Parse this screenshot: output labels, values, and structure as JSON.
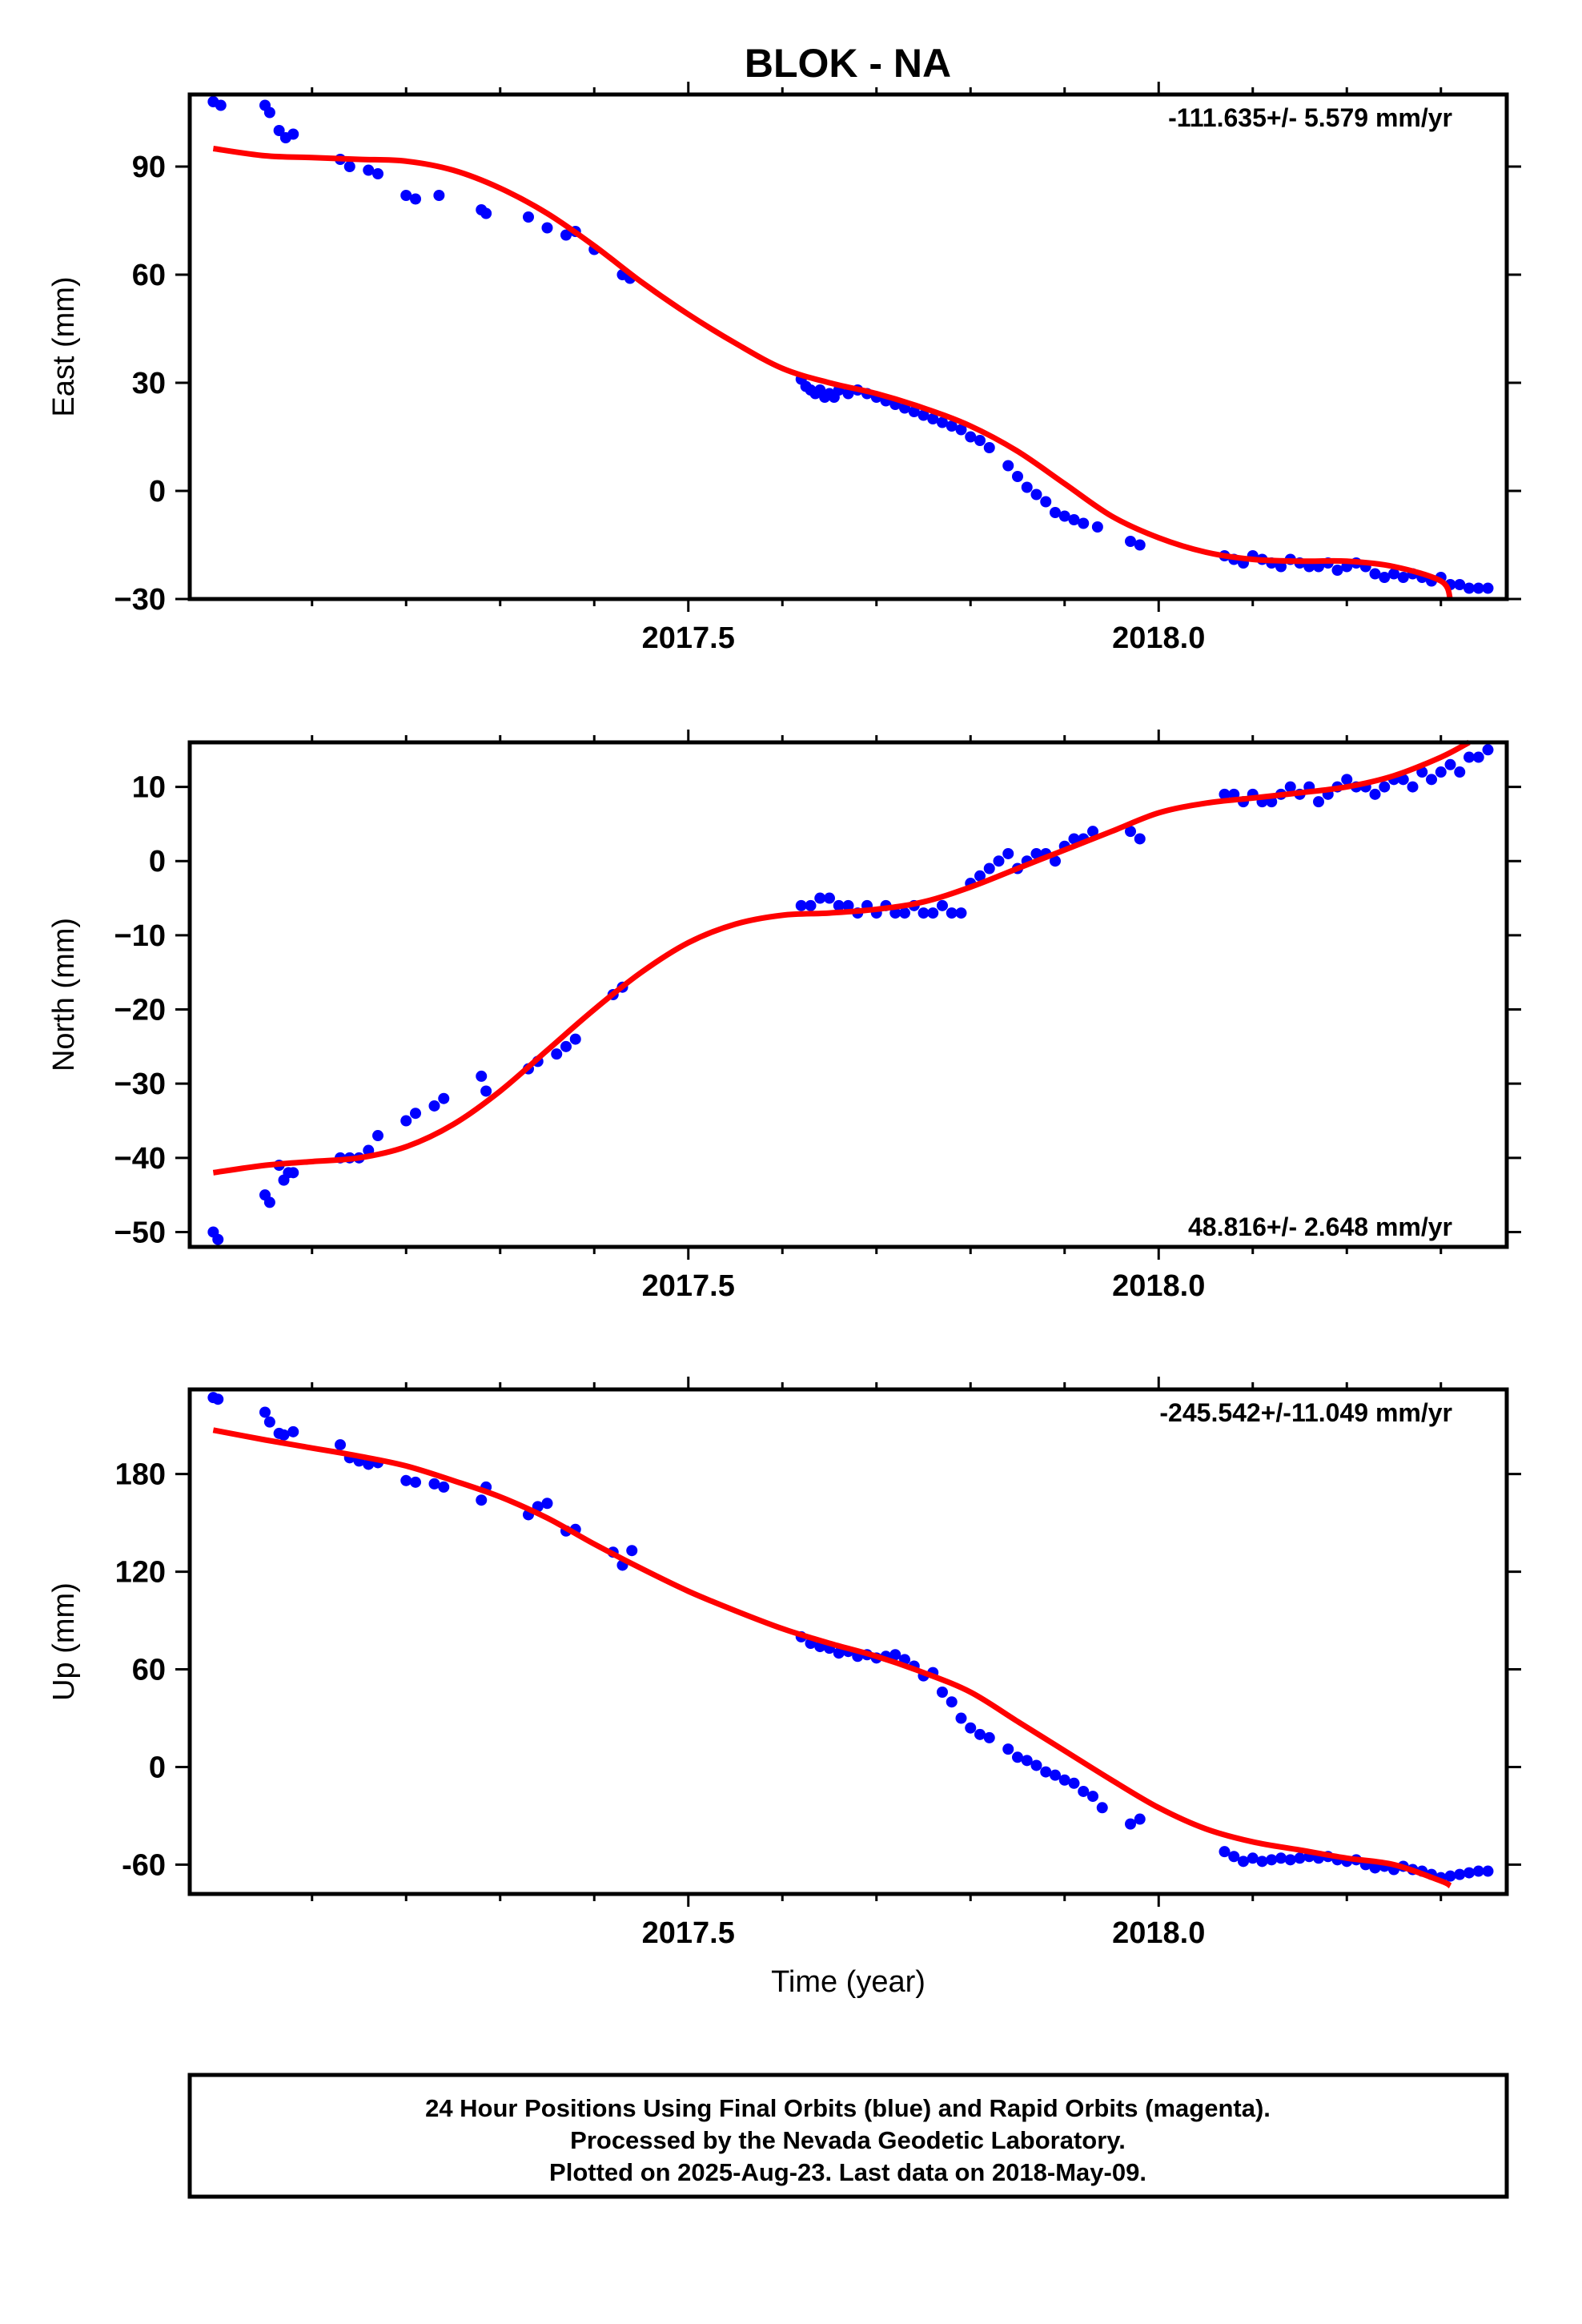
{
  "figure": {
    "title": "BLOK - NA",
    "footer": [
      "24 Hour Positions Using Final Orbits (blue) and Rapid Orbits (magenta).",
      "Processed by the Nevada Geodetic Laboratory.",
      "Plotted on 2025-Aug-23. Last data on 2018-May-09."
    ],
    "colors": {
      "data": "#0000ff",
      "fit": "#ff0000",
      "frame": "#000000"
    }
  },
  "chart_data": [
    {
      "type": "scatter",
      "ylabel": "East (mm)",
      "xlabel": "",
      "rate": "-111.635+/- 5.579 mm/yr",
      "rate_placement": "top-right",
      "xlim": [
        2016.97,
        2018.37
      ],
      "ylim": [
        -30,
        110
      ],
      "xticks": [
        2017.5,
        2018.0
      ],
      "xtick_labels": [
        "2017.5",
        "2018.0"
      ],
      "yticks": [
        -30,
        0,
        30,
        60,
        90
      ],
      "ytick_labels": [
        "−30",
        "0",
        "30",
        "60",
        "90"
      ],
      "series": [
        {
          "kind": "points",
          "x": [
            2016.995,
            2017.003,
            2017.05,
            2017.055,
            2017.065,
            2017.072,
            2017.08,
            2017.13,
            2017.14,
            2017.16,
            2017.17,
            2017.2,
            2017.21,
            2017.235,
            2017.28,
            2017.285,
            2017.33,
            2017.35,
            2017.37,
            2017.38,
            2017.4,
            2017.43,
            2017.438,
            2017.62,
            2017.625,
            2017.63,
            2017.635,
            2017.64,
            2017.645,
            2017.65,
            2017.655,
            2017.66,
            2017.67,
            2017.68,
            2017.69,
            2017.7,
            2017.71,
            2017.72,
            2017.73,
            2017.74,
            2017.75,
            2017.76,
            2017.77,
            2017.78,
            2017.79,
            2017.8,
            2017.81,
            2017.82,
            2017.84,
            2017.85,
            2017.86,
            2017.87,
            2017.88,
            2017.89,
            2017.9,
            2017.91,
            2017.92,
            2017.935,
            2017.97,
            2017.98,
            2018.07,
            2018.08,
            2018.09,
            2018.1,
            2018.11,
            2018.12,
            2018.13,
            2018.14,
            2018.15,
            2018.16,
            2018.17,
            2018.18,
            2018.19,
            2018.2,
            2018.21,
            2018.22,
            2018.23,
            2018.24,
            2018.25,
            2018.26,
            2018.27,
            2018.28,
            2018.29,
            2018.3,
            2018.31,
            2018.32,
            2018.33,
            2018.34,
            2018.35
          ],
          "y": [
            108,
            107,
            107,
            105,
            100,
            98,
            99,
            92,
            90,
            89,
            88,
            82,
            81,
            82,
            78,
            77,
            76,
            73,
            71,
            72,
            67,
            60,
            59,
            31,
            29,
            28,
            27,
            28,
            26,
            27,
            26,
            28,
            27,
            28,
            27,
            26,
            25,
            24,
            23,
            22,
            21,
            20,
            19,
            18,
            17,
            15,
            14,
            12,
            7,
            4,
            1,
            -1,
            -3,
            -6,
            -7,
            -8,
            -9,
            -10,
            -14,
            -15,
            -18,
            -19,
            -20,
            -18,
            -19,
            -20,
            -21,
            -19,
            -20,
            -21,
            -21,
            -20,
            -22,
            -21,
            -20,
            -21,
            -23,
            -24,
            -23,
            -24,
            -23,
            -24,
            -25,
            -24,
            -26,
            -26,
            -27,
            -27,
            -27
          ]
        },
        {
          "kind": "fit",
          "x": [
            2016.995,
            2017.05,
            2017.1,
            2017.15,
            2017.2,
            2017.25,
            2017.3,
            2017.35,
            2017.4,
            2017.45,
            2017.5,
            2017.55,
            2017.6,
            2017.65,
            2017.7,
            2017.75,
            2017.8,
            2017.85,
            2017.9,
            2017.95,
            2018.0,
            2018.05,
            2018.1,
            2018.15,
            2018.2,
            2018.25,
            2018.3,
            2018.31
          ],
          "y": [
            95,
            93,
            92.5,
            92,
            91.5,
            89,
            84,
            77,
            68,
            58,
            49,
            41,
            34,
            30,
            27,
            23,
            18,
            11,
            2,
            -7,
            -13,
            -17,
            -19,
            -19.5,
            -19.5,
            -21,
            -25,
            -30
          ]
        }
      ]
    },
    {
      "type": "scatter",
      "ylabel": "North (mm)",
      "xlabel": "",
      "rate": "48.816+/- 2.648 mm/yr",
      "rate_placement": "bottom-right",
      "xlim": [
        2016.97,
        2018.37
      ],
      "ylim": [
        -52,
        16
      ],
      "xticks": [
        2017.5,
        2018.0
      ],
      "xtick_labels": [
        "2017.5",
        "2018.0"
      ],
      "yticks": [
        -50,
        -40,
        -30,
        -20,
        -10,
        0,
        10
      ],
      "ytick_labels": [
        "−50",
        "−40",
        "−30",
        "−20",
        "−10",
        "0",
        "10"
      ],
      "series": [
        {
          "kind": "points",
          "x": [
            2016.995,
            2017.0,
            2017.05,
            2017.055,
            2017.065,
            2017.07,
            2017.075,
            2017.08,
            2017.13,
            2017.14,
            2017.15,
            2017.16,
            2017.17,
            2017.2,
            2017.21,
            2017.23,
            2017.24,
            2017.28,
            2017.285,
            2017.33,
            2017.34,
            2017.36,
            2017.37,
            2017.38,
            2017.42,
            2017.43,
            2017.62,
            2017.63,
            2017.64,
            2017.65,
            2017.66,
            2017.67,
            2017.68,
            2017.69,
            2017.7,
            2017.71,
            2017.72,
            2017.73,
            2017.74,
            2017.75,
            2017.76,
            2017.77,
            2017.78,
            2017.79,
            2017.8,
            2017.81,
            2017.82,
            2017.83,
            2017.84,
            2017.85,
            2017.86,
            2017.87,
            2017.88,
            2017.89,
            2017.9,
            2017.91,
            2017.92,
            2017.93,
            2017.97,
            2017.98,
            2018.07,
            2018.08,
            2018.09,
            2018.1,
            2018.11,
            2018.12,
            2018.13,
            2018.14,
            2018.15,
            2018.16,
            2018.17,
            2018.18,
            2018.19,
            2018.2,
            2018.21,
            2018.22,
            2018.23,
            2018.24,
            2018.25,
            2018.26,
            2018.27,
            2018.28,
            2018.29,
            2018.3,
            2018.31,
            2018.32,
            2018.33,
            2018.34,
            2018.35
          ],
          "y": [
            -50,
            -51,
            -45,
            -46,
            -41,
            -43,
            -42,
            -42,
            -40,
            -40,
            -40,
            -39,
            -37,
            -35,
            -34,
            -33,
            -32,
            -29,
            -31,
            -28,
            -27,
            -26,
            -25,
            -24,
            -18,
            -17,
            -6,
            -6,
            -5,
            -5,
            -6,
            -6,
            -7,
            -6,
            -7,
            -6,
            -7,
            -7,
            -6,
            -7,
            -7,
            -6,
            -7,
            -7,
            -3,
            -2,
            -1,
            0,
            1,
            -1,
            0,
            1,
            1,
            0,
            2,
            3,
            3,
            4,
            4,
            3,
            9,
            9,
            8,
            9,
            8,
            8,
            9,
            10,
            9,
            10,
            8,
            9,
            10,
            11,
            10,
            10,
            9,
            10,
            11,
            11,
            10,
            12,
            11,
            12,
            13,
            12,
            14,
            14,
            15
          ],
          "color": "#0000ff"
        },
        {
          "kind": "fit",
          "x": [
            2016.995,
            2017.05,
            2017.1,
            2017.15,
            2017.2,
            2017.25,
            2017.3,
            2017.35,
            2017.4,
            2017.45,
            2017.5,
            2017.55,
            2017.6,
            2017.65,
            2017.7,
            2017.75,
            2017.8,
            2017.85,
            2017.9,
            2017.95,
            2018.0,
            2018.05,
            2018.1,
            2018.15,
            2018.2,
            2018.25,
            2018.3,
            2018.33
          ],
          "y": [
            -42,
            -41,
            -40.5,
            -40,
            -38.5,
            -35.5,
            -31,
            -25.5,
            -20,
            -15,
            -11,
            -8.5,
            -7.3,
            -7,
            -6.5,
            -5.5,
            -3.5,
            -1,
            1.5,
            4,
            6.5,
            7.8,
            8.5,
            9.2,
            10,
            11.5,
            14,
            16
          ]
        }
      ]
    },
    {
      "type": "scatter",
      "ylabel": "Up (mm)",
      "xlabel": "Time (year)",
      "rate": "-245.542+/-11.049 mm/yr",
      "rate_placement": "top-right",
      "xlim": [
        2016.97,
        2018.37
      ],
      "ylim": [
        -78,
        232
      ],
      "xticks": [
        2017.5,
        2018.0
      ],
      "xtick_labels": [
        "2017.5",
        "2018.0"
      ],
      "yticks": [
        -60,
        0,
        60,
        120,
        180
      ],
      "ytick_labels": [
        "-60",
        "0",
        "60",
        "120",
        "180"
      ],
      "series": [
        {
          "kind": "points",
          "x": [
            2016.995,
            2017.0,
            2017.05,
            2017.055,
            2017.065,
            2017.07,
            2017.08,
            2017.13,
            2017.14,
            2017.15,
            2017.16,
            2017.17,
            2017.2,
            2017.21,
            2017.23,
            2017.24,
            2017.28,
            2017.285,
            2017.33,
            2017.34,
            2017.35,
            2017.37,
            2017.38,
            2017.42,
            2017.43,
            2017.44,
            2017.62,
            2017.63,
            2017.64,
            2017.65,
            2017.66,
            2017.67,
            2017.68,
            2017.69,
            2017.7,
            2017.71,
            2017.72,
            2017.73,
            2017.74,
            2017.75,
            2017.76,
            2017.77,
            2017.78,
            2017.79,
            2017.8,
            2017.81,
            2017.82,
            2017.84,
            2017.85,
            2017.86,
            2017.87,
            2017.88,
            2017.89,
            2017.9,
            2017.91,
            2017.92,
            2017.93,
            2017.94,
            2017.97,
            2017.98,
            2018.07,
            2018.08,
            2018.09,
            2018.1,
            2018.11,
            2018.12,
            2018.13,
            2018.14,
            2018.15,
            2018.16,
            2018.17,
            2018.18,
            2018.19,
            2018.2,
            2018.21,
            2018.22,
            2018.23,
            2018.24,
            2018.25,
            2018.26,
            2018.27,
            2018.28,
            2018.29,
            2018.3,
            2018.31,
            2018.32,
            2018.33,
            2018.34,
            2018.35
          ],
          "y": [
            227,
            226,
            218,
            212,
            205,
            204,
            206,
            198,
            190,
            188,
            186,
            187,
            176,
            175,
            174,
            172,
            164,
            172,
            155,
            160,
            162,
            145,
            146,
            132,
            124,
            133,
            80,
            76,
            74,
            73,
            70,
            71,
            68,
            69,
            67,
            68,
            69,
            66,
            62,
            56,
            58,
            46,
            40,
            30,
            24,
            20,
            18,
            11,
            6,
            4,
            1,
            -3,
            -5,
            -8,
            -10,
            -15,
            -18,
            -25,
            -35,
            -32,
            -52,
            -55,
            -58,
            -56,
            -58,
            -57,
            -56,
            -57,
            -56,
            -55,
            -56,
            -55,
            -57,
            -58,
            -57,
            -60,
            -62,
            -61,
            -63,
            -61,
            -63,
            -64,
            -66,
            -68,
            -67,
            -66,
            -65,
            -64,
            -64
          ],
          "color": "#0000ff"
        },
        {
          "kind": "fit",
          "x": [
            2016.995,
            2017.05,
            2017.1,
            2017.15,
            2017.2,
            2017.25,
            2017.3,
            2017.35,
            2017.4,
            2017.45,
            2017.5,
            2017.55,
            2017.6,
            2017.65,
            2017.7,
            2017.75,
            2017.8,
            2017.85,
            2017.9,
            2017.95,
            2018.0,
            2018.05,
            2018.1,
            2018.15,
            2018.2,
            2018.25,
            2018.3,
            2018.31
          ],
          "y": [
            207,
            201,
            196,
            191,
            185,
            176,
            166,
            153,
            137,
            122,
            108,
            96,
            85,
            76,
            68,
            58,
            46,
            28,
            10,
            -8,
            -25,
            -38,
            -46,
            -51,
            -56,
            -60,
            -70,
            -73
          ]
        }
      ]
    }
  ]
}
